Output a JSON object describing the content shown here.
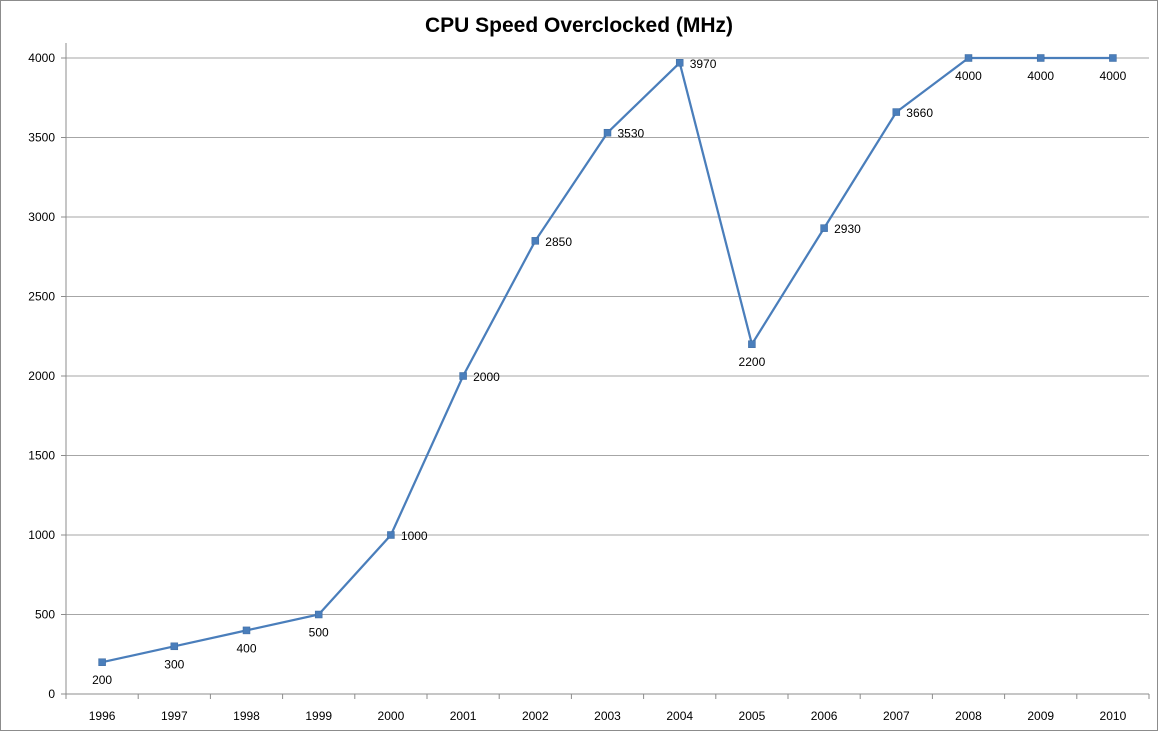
{
  "chart_data": {
    "type": "line",
    "title": "CPU Speed Overclocked (MHz)",
    "xlabel": "",
    "ylabel": "",
    "categories": [
      "1996",
      "1997",
      "1998",
      "1999",
      "2000",
      "2001",
      "2002",
      "2003",
      "2004",
      "2005",
      "2006",
      "2007",
      "2008",
      "2009",
      "2010"
    ],
    "series": [
      {
        "values": [
          200,
          300,
          400,
          500,
          1000,
          2000,
          2850,
          3530,
          3970,
          2200,
          2930,
          3660,
          4000,
          4000,
          4000
        ]
      }
    ],
    "data_labels": [
      "200",
      "300",
      "400",
      "500",
      "1000",
      "2000",
      "2850",
      "3530",
      "3970",
      "2200",
      "2930",
      "3660",
      "4000",
      "4000",
      "4000"
    ],
    "ylim": [
      0,
      4000
    ],
    "y_ticks": [
      "0",
      "500",
      "1000",
      "1500",
      "2000",
      "2500",
      "3000",
      "3500",
      "4000"
    ],
    "grid": true,
    "legend": "none",
    "colors": {
      "line": "#4a7ebb",
      "marker": "#4a7ebb",
      "grid": "#a6a6a6",
      "axis": "#8c8c8c"
    }
  }
}
